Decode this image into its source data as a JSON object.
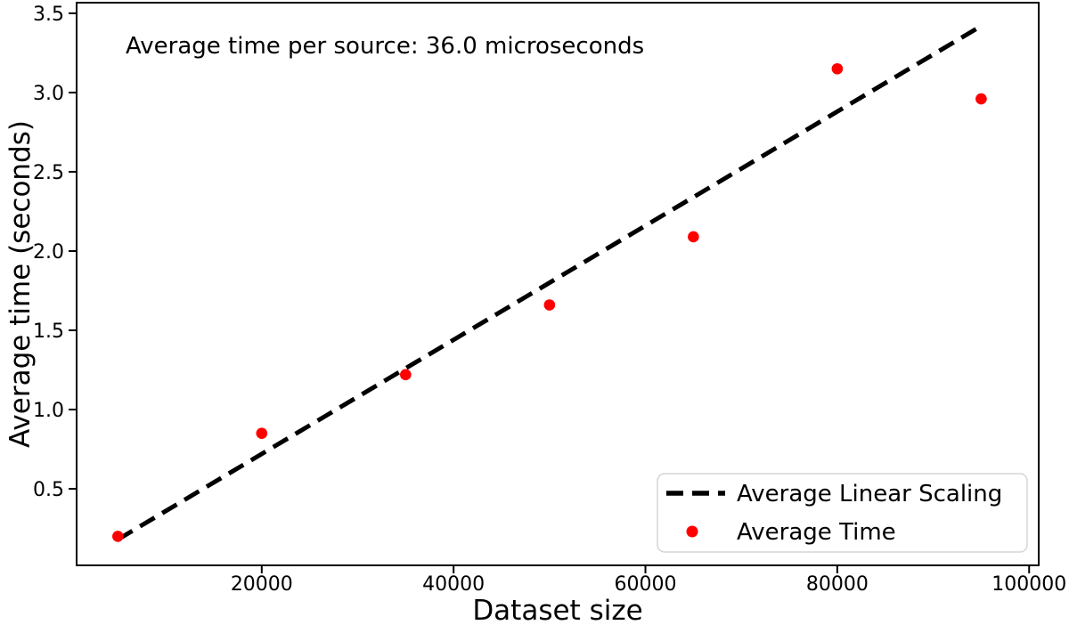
{
  "figure": {
    "annotation": "Average time per source: 36.0 microseconds",
    "xlabel": "Dataset size",
    "ylabel": "Average time (seconds)"
  },
  "legend": {
    "entries": [
      {
        "label": "Average Linear Scaling",
        "marker": "dashed-line",
        "color": "#000000"
      },
      {
        "label": "Average Time",
        "marker": "dot",
        "color": "#ff0000"
      }
    ],
    "position": "lower right"
  },
  "chart_data": {
    "type": "scatter",
    "annotation": "Average time per source: 36.0 microseconds",
    "avg_time_per_source_microseconds": 36.0,
    "xlabel": "Dataset size",
    "ylabel": "Average time (seconds)",
    "xlim": [
      700,
      101000
    ],
    "ylim": [
      0.017,
      3.567
    ],
    "grid": false,
    "xticks": {
      "values": [
        20000,
        40000,
        60000,
        80000,
        100000
      ],
      "labels": [
        "20000",
        "40000",
        "60000",
        "80000",
        "100000"
      ]
    },
    "yticks": {
      "values": [
        0.5,
        1.0,
        1.5,
        2.0,
        2.5,
        3.0,
        3.5
      ],
      "labels": [
        "0.5",
        "1.0",
        "1.5",
        "2.0",
        "2.5",
        "3.0",
        "3.5"
      ]
    },
    "series": [
      {
        "name": "Average Linear Scaling",
        "type": "line",
        "style": "dashed",
        "color": "#000000",
        "x": [
          5000,
          95000
        ],
        "y": [
          0.18,
          3.42
        ]
      },
      {
        "name": "Average Time",
        "type": "scatter",
        "color": "#ff0000",
        "x": [
          5000,
          20000,
          35000,
          50000,
          65000,
          80000,
          95000
        ],
        "y": [
          0.2,
          0.85,
          1.22,
          1.66,
          2.09,
          3.15,
          2.96
        ]
      }
    ]
  }
}
